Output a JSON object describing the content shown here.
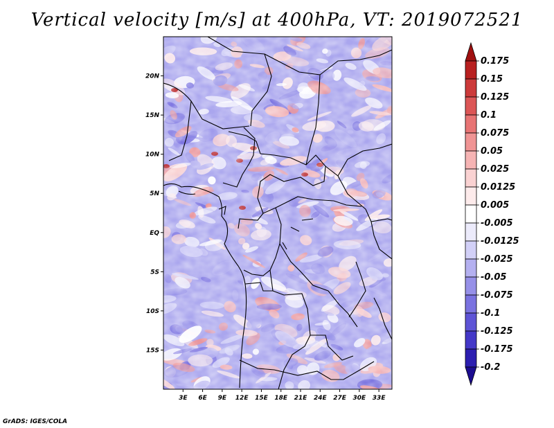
{
  "title": "Vertical velocity [m/s] at 400hPa, VT: 2019072521",
  "credit": "GrADS: IGES/COLA",
  "map": {
    "lon_range": [
      0,
      35
    ],
    "lat_range": [
      -20,
      25
    ],
    "lat_ticks": [
      {
        "value": 20,
        "label": "20N"
      },
      {
        "value": 15,
        "label": "15N"
      },
      {
        "value": 10,
        "label": "10N"
      },
      {
        "value": 5,
        "label": "5N"
      },
      {
        "value": 0,
        "label": "EQ"
      },
      {
        "value": -5,
        "label": "5S"
      },
      {
        "value": -10,
        "label": "10S"
      },
      {
        "value": -15,
        "label": "15S"
      }
    ],
    "lon_ticks": [
      {
        "value": 3,
        "label": "3E"
      },
      {
        "value": 6,
        "label": "6E"
      },
      {
        "value": 9,
        "label": "9E"
      },
      {
        "value": 12,
        "label": "12E"
      },
      {
        "value": 15,
        "label": "15E"
      },
      {
        "value": 18,
        "label": "18E"
      },
      {
        "value": 21,
        "label": "21E"
      },
      {
        "value": 24,
        "label": "24E"
      },
      {
        "value": 27,
        "label": "27E"
      },
      {
        "value": 30,
        "label": "30E"
      },
      {
        "value": 33,
        "label": "33E"
      }
    ]
  },
  "colorbar": {
    "labels": [
      "0.175",
      "0.15",
      "0.125",
      "0.1",
      "0.075",
      "0.05",
      "0.025",
      "0.0125",
      "0.005",
      "-0.005",
      "-0.0125",
      "-0.025",
      "-0.05",
      "-0.075",
      "-0.1",
      "-0.125",
      "-0.175",
      "-0.2"
    ],
    "colors": [
      "#a01010",
      "#b82020",
      "#cc3a3a",
      "#dc5656",
      "#e87474",
      "#f09494",
      "#f6b4b4",
      "#fad2d2",
      "#fdebeb",
      "#ffffff",
      "#ecebfb",
      "#d2d0f7",
      "#b4b0f0",
      "#9690e8",
      "#7a72e0",
      "#5e54d6",
      "#4438c8",
      "#2c1eb0",
      "#1c0c90"
    ]
  }
}
